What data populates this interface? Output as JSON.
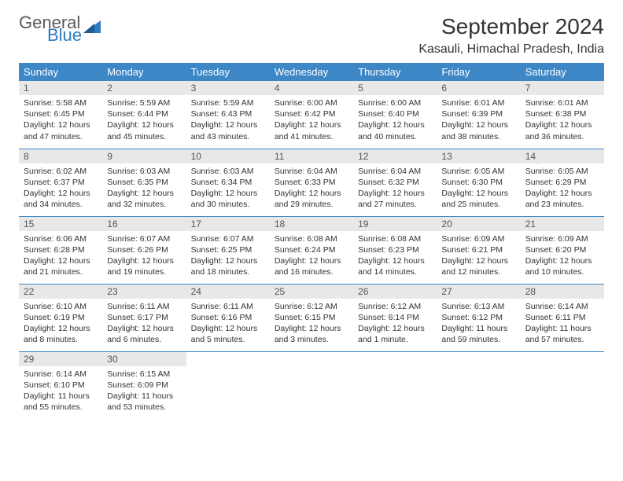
{
  "logo": {
    "line1": "General",
    "line2": "Blue",
    "color1": "#5a5a5a",
    "color2": "#2f7bbf"
  },
  "title": "September 2024",
  "location": "Kasauli, Himachal Pradesh, India",
  "theme": {
    "header_bg": "#3d87c7",
    "header_fg": "#ffffff",
    "daynum_bg": "#e8e8e8",
    "border_color": "#3d87c7",
    "text_color": "#333333"
  },
  "weekdays": [
    "Sunday",
    "Monday",
    "Tuesday",
    "Wednesday",
    "Thursday",
    "Friday",
    "Saturday"
  ],
  "days": [
    {
      "n": 1,
      "sunrise": "5:58 AM",
      "sunset": "6:45 PM",
      "daylight": "12 hours and 47 minutes."
    },
    {
      "n": 2,
      "sunrise": "5:59 AM",
      "sunset": "6:44 PM",
      "daylight": "12 hours and 45 minutes."
    },
    {
      "n": 3,
      "sunrise": "5:59 AM",
      "sunset": "6:43 PM",
      "daylight": "12 hours and 43 minutes."
    },
    {
      "n": 4,
      "sunrise": "6:00 AM",
      "sunset": "6:42 PM",
      "daylight": "12 hours and 41 minutes."
    },
    {
      "n": 5,
      "sunrise": "6:00 AM",
      "sunset": "6:40 PM",
      "daylight": "12 hours and 40 minutes."
    },
    {
      "n": 6,
      "sunrise": "6:01 AM",
      "sunset": "6:39 PM",
      "daylight": "12 hours and 38 minutes."
    },
    {
      "n": 7,
      "sunrise": "6:01 AM",
      "sunset": "6:38 PM",
      "daylight": "12 hours and 36 minutes."
    },
    {
      "n": 8,
      "sunrise": "6:02 AM",
      "sunset": "6:37 PM",
      "daylight": "12 hours and 34 minutes."
    },
    {
      "n": 9,
      "sunrise": "6:03 AM",
      "sunset": "6:35 PM",
      "daylight": "12 hours and 32 minutes."
    },
    {
      "n": 10,
      "sunrise": "6:03 AM",
      "sunset": "6:34 PM",
      "daylight": "12 hours and 30 minutes."
    },
    {
      "n": 11,
      "sunrise": "6:04 AM",
      "sunset": "6:33 PM",
      "daylight": "12 hours and 29 minutes."
    },
    {
      "n": 12,
      "sunrise": "6:04 AM",
      "sunset": "6:32 PM",
      "daylight": "12 hours and 27 minutes."
    },
    {
      "n": 13,
      "sunrise": "6:05 AM",
      "sunset": "6:30 PM",
      "daylight": "12 hours and 25 minutes."
    },
    {
      "n": 14,
      "sunrise": "6:05 AM",
      "sunset": "6:29 PM",
      "daylight": "12 hours and 23 minutes."
    },
    {
      "n": 15,
      "sunrise": "6:06 AM",
      "sunset": "6:28 PM",
      "daylight": "12 hours and 21 minutes."
    },
    {
      "n": 16,
      "sunrise": "6:07 AM",
      "sunset": "6:26 PM",
      "daylight": "12 hours and 19 minutes."
    },
    {
      "n": 17,
      "sunrise": "6:07 AM",
      "sunset": "6:25 PM",
      "daylight": "12 hours and 18 minutes."
    },
    {
      "n": 18,
      "sunrise": "6:08 AM",
      "sunset": "6:24 PM",
      "daylight": "12 hours and 16 minutes."
    },
    {
      "n": 19,
      "sunrise": "6:08 AM",
      "sunset": "6:23 PM",
      "daylight": "12 hours and 14 minutes."
    },
    {
      "n": 20,
      "sunrise": "6:09 AM",
      "sunset": "6:21 PM",
      "daylight": "12 hours and 12 minutes."
    },
    {
      "n": 21,
      "sunrise": "6:09 AM",
      "sunset": "6:20 PM",
      "daylight": "12 hours and 10 minutes."
    },
    {
      "n": 22,
      "sunrise": "6:10 AM",
      "sunset": "6:19 PM",
      "daylight": "12 hours and 8 minutes."
    },
    {
      "n": 23,
      "sunrise": "6:11 AM",
      "sunset": "6:17 PM",
      "daylight": "12 hours and 6 minutes."
    },
    {
      "n": 24,
      "sunrise": "6:11 AM",
      "sunset": "6:16 PM",
      "daylight": "12 hours and 5 minutes."
    },
    {
      "n": 25,
      "sunrise": "6:12 AM",
      "sunset": "6:15 PM",
      "daylight": "12 hours and 3 minutes."
    },
    {
      "n": 26,
      "sunrise": "6:12 AM",
      "sunset": "6:14 PM",
      "daylight": "12 hours and 1 minute."
    },
    {
      "n": 27,
      "sunrise": "6:13 AM",
      "sunset": "6:12 PM",
      "daylight": "11 hours and 59 minutes."
    },
    {
      "n": 28,
      "sunrise": "6:14 AM",
      "sunset": "6:11 PM",
      "daylight": "11 hours and 57 minutes."
    },
    {
      "n": 29,
      "sunrise": "6:14 AM",
      "sunset": "6:10 PM",
      "daylight": "11 hours and 55 minutes."
    },
    {
      "n": 30,
      "sunrise": "6:15 AM",
      "sunset": "6:09 PM",
      "daylight": "11 hours and 53 minutes."
    }
  ],
  "labels": {
    "sunrise": "Sunrise:",
    "sunset": "Sunset:",
    "daylight": "Daylight:"
  },
  "start_weekday": 0,
  "rows": 5
}
